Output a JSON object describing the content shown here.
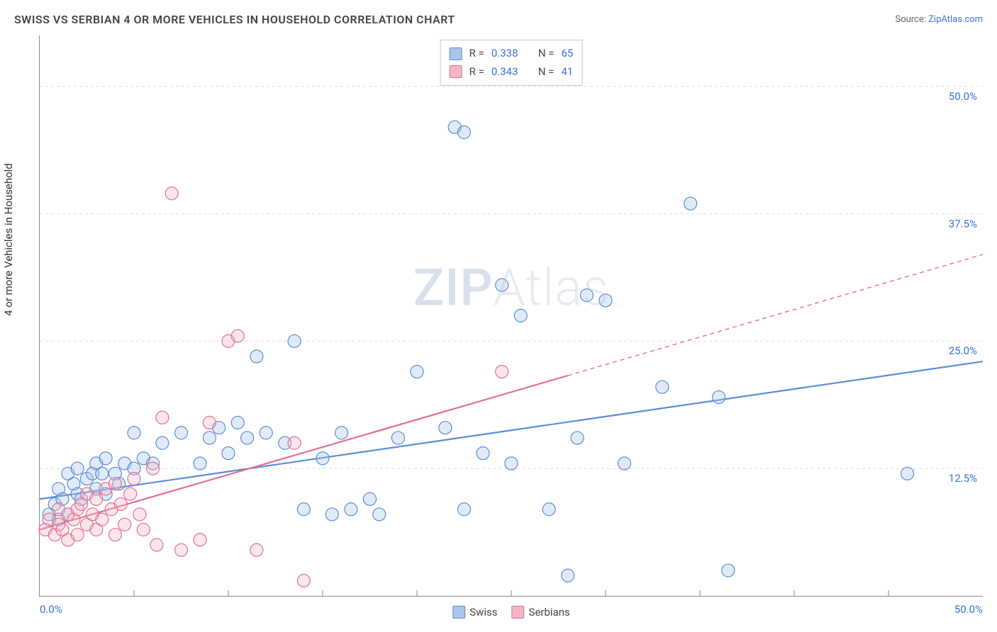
{
  "title": "SWISS VS SERBIAN 4 OR MORE VEHICLES IN HOUSEHOLD CORRELATION CHART",
  "source": {
    "label": "Source: ",
    "link_text": "ZipAtlas.com"
  },
  "y_axis_label": "4 or more Vehicles in Household",
  "watermark": {
    "part1": "ZIP",
    "part2": "Atlas"
  },
  "chart": {
    "type": "scatter",
    "xlim": [
      0,
      50
    ],
    "ylim": [
      0,
      55
    ],
    "x_ticks_labeled": {
      "min": "0.0%",
      "max": "50.0%"
    },
    "y_ticks": [
      {
        "value": 12.5,
        "label": "12.5%"
      },
      {
        "value": 25.0,
        "label": "25.0%"
      },
      {
        "value": 37.5,
        "label": "37.5%"
      },
      {
        "value": 50.0,
        "label": "50.0%"
      }
    ],
    "x_minor_ticks": [
      5,
      10,
      15,
      20,
      25,
      30,
      35,
      40,
      45
    ],
    "gridline_color": "#dddddd",
    "gridline_dash": "4,4",
    "axis_color": "#888888",
    "background_color": "#ffffff",
    "marker_radius": 9,
    "marker_stroke_width": 1.2,
    "marker_fill_opacity": 0.35,
    "trendline_width_solid": 2.2,
    "trendline_width_dash": 1.4,
    "trendline_dash_pattern": "6,5",
    "series": [
      {
        "name": "Swiss",
        "color_stroke": "#5a8dd6",
        "color_fill": "#a9c5ea",
        "r_value": "0.338",
        "n_value": "65",
        "trendline": {
          "x1": 0,
          "y1": 9.5,
          "x2": 50,
          "y2": 23.0,
          "solid_until_x": 50
        },
        "points": [
          [
            0.5,
            8.0
          ],
          [
            0.8,
            9.0
          ],
          [
            1.0,
            7.5
          ],
          [
            1.0,
            10.5
          ],
          [
            1.2,
            9.5
          ],
          [
            1.5,
            8.0
          ],
          [
            1.5,
            12.0
          ],
          [
            1.8,
            11.0
          ],
          [
            2.0,
            10.0
          ],
          [
            2.0,
            12.5
          ],
          [
            2.2,
            9.5
          ],
          [
            2.5,
            11.5
          ],
          [
            2.8,
            12.0
          ],
          [
            3.0,
            10.5
          ],
          [
            3.0,
            13.0
          ],
          [
            3.3,
            12.0
          ],
          [
            3.5,
            10.0
          ],
          [
            3.5,
            13.5
          ],
          [
            4.0,
            12.0
          ],
          [
            4.2,
            11.0
          ],
          [
            4.5,
            13.0
          ],
          [
            5.0,
            12.5
          ],
          [
            5.0,
            16.0
          ],
          [
            5.5,
            13.5
          ],
          [
            6.0,
            13.0
          ],
          [
            6.5,
            15.0
          ],
          [
            7.5,
            16.0
          ],
          [
            8.5,
            13.0
          ],
          [
            9.0,
            15.5
          ],
          [
            9.5,
            16.5
          ],
          [
            10.0,
            14.0
          ],
          [
            10.5,
            17.0
          ],
          [
            11.0,
            15.5
          ],
          [
            11.5,
            23.5
          ],
          [
            12.0,
            16.0
          ],
          [
            13.0,
            15.0
          ],
          [
            13.5,
            25.0
          ],
          [
            14.0,
            8.5
          ],
          [
            15.0,
            13.5
          ],
          [
            15.5,
            8.0
          ],
          [
            16.0,
            16.0
          ],
          [
            16.5,
            8.5
          ],
          [
            17.5,
            9.5
          ],
          [
            18.0,
            8.0
          ],
          [
            19.0,
            15.5
          ],
          [
            20.0,
            22.0
          ],
          [
            21.5,
            16.5
          ],
          [
            22.0,
            46.0
          ],
          [
            22.5,
            45.5
          ],
          [
            22.5,
            8.5
          ],
          [
            23.5,
            14.0
          ],
          [
            24.5,
            30.5
          ],
          [
            25.0,
            13.0
          ],
          [
            25.5,
            27.5
          ],
          [
            27.0,
            8.5
          ],
          [
            28.5,
            15.5
          ],
          [
            29.0,
            29.5
          ],
          [
            30.0,
            29.0
          ],
          [
            31.0,
            13.0
          ],
          [
            33.0,
            20.5
          ],
          [
            34.5,
            38.5
          ],
          [
            36.5,
            2.5
          ],
          [
            36.0,
            19.5
          ],
          [
            46.0,
            12.0
          ],
          [
            28.0,
            2.0
          ]
        ]
      },
      {
        "name": "Serbians",
        "color_stroke": "#e36f91",
        "color_fill": "#f3b6c7",
        "r_value": "0.343",
        "n_value": "41",
        "trendline": {
          "x1": 0,
          "y1": 6.5,
          "x2": 50,
          "y2": 33.5,
          "solid_until_x": 28
        },
        "points": [
          [
            0.3,
            6.5
          ],
          [
            0.5,
            7.5
          ],
          [
            0.8,
            6.0
          ],
          [
            1.0,
            7.0
          ],
          [
            1.0,
            8.5
          ],
          [
            1.2,
            6.5
          ],
          [
            1.5,
            8.0
          ],
          [
            1.5,
            5.5
          ],
          [
            1.8,
            7.5
          ],
          [
            2.0,
            8.5
          ],
          [
            2.0,
            6.0
          ],
          [
            2.2,
            9.0
          ],
          [
            2.5,
            7.0
          ],
          [
            2.5,
            10.0
          ],
          [
            2.8,
            8.0
          ],
          [
            3.0,
            6.5
          ],
          [
            3.0,
            9.5
          ],
          [
            3.3,
            7.5
          ],
          [
            3.5,
            10.5
          ],
          [
            3.8,
            8.5
          ],
          [
            4.0,
            6.0
          ],
          [
            4.0,
            11.0
          ],
          [
            4.3,
            9.0
          ],
          [
            4.5,
            7.0
          ],
          [
            4.8,
            10.0
          ],
          [
            5.0,
            11.5
          ],
          [
            5.3,
            8.0
          ],
          [
            5.5,
            6.5
          ],
          [
            6.0,
            12.5
          ],
          [
            6.2,
            5.0
          ],
          [
            6.5,
            17.5
          ],
          [
            7.0,
            39.5
          ],
          [
            7.5,
            4.5
          ],
          [
            8.5,
            5.5
          ],
          [
            9.0,
            17.0
          ],
          [
            10.0,
            25.0
          ],
          [
            10.5,
            25.5
          ],
          [
            11.5,
            4.5
          ],
          [
            13.5,
            15.0
          ],
          [
            14.0,
            1.5
          ],
          [
            24.5,
            22.0
          ]
        ]
      }
    ]
  },
  "bottom_legend": [
    {
      "label": "Swiss",
      "fill": "#a9c5ea",
      "stroke": "#5a8dd6"
    },
    {
      "label": "Serbians",
      "fill": "#f3b6c7",
      "stroke": "#e36f91"
    }
  ]
}
